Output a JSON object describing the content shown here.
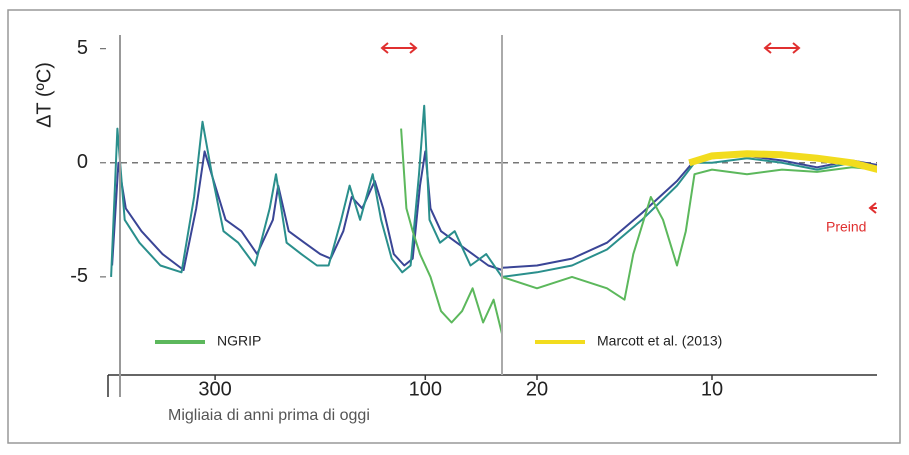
{
  "chart_data": [
    {
      "type": "line",
      "y_label": "ΔT (ºC)",
      "x_label": "Migliaia di anni prima di oggi",
      "xlim": [
        400,
        27
      ],
      "xticks": [
        300,
        100
      ],
      "ylim": [
        -9.3,
        5.6
      ],
      "yticks": [
        5,
        0,
        -5
      ],
      "hline": 0,
      "annotations": [],
      "series": [
        {
          "color": "#3a4596",
          "x": [
            398,
            392,
            385,
            370,
            350,
            330,
            318,
            310,
            300,
            290,
            275,
            260,
            245,
            240,
            230,
            215,
            200,
            190,
            178,
            170,
            160,
            148,
            140,
            130,
            120,
            112,
            105,
            100,
            95,
            85,
            70,
            55,
            40,
            27
          ],
          "values": [
            -4.5,
            0,
            -2,
            -3,
            -4,
            -4.7,
            -2,
            0.5,
            -1,
            -2.5,
            -3,
            -4,
            -2.5,
            -1,
            -3,
            -3.5,
            -4,
            -4.2,
            -3,
            -1.5,
            -2,
            -0.8,
            -2,
            -4,
            -4.5,
            -4.2,
            -1,
            0.5,
            -2,
            -3,
            -3.5,
            -4,
            -4.5,
            -4.7
          ]
        },
        {
          "color": "#2a8f8c",
          "x": [
            399,
            393,
            386,
            372,
            352,
            332,
            320,
            312,
            303,
            292,
            278,
            262,
            248,
            242,
            232,
            218,
            203,
            192,
            180,
            172,
            162,
            150,
            142,
            132,
            122,
            114,
            106,
            101,
            96,
            86,
            72,
            57,
            42,
            27
          ],
          "values": [
            -5,
            1.5,
            -2.5,
            -3.5,
            -4.5,
            -4.8,
            -1.5,
            1.8,
            -0.5,
            -3,
            -3.5,
            -4.5,
            -2,
            -0.5,
            -3.5,
            -4,
            -4.5,
            -4.5,
            -2.5,
            -1,
            -2.5,
            -0.5,
            -2.5,
            -4.2,
            -4.8,
            -4.5,
            -0.5,
            2.5,
            -2.5,
            -3.5,
            -3,
            -4.5,
            -4,
            -5
          ]
        },
        {
          "name": "NGRIP",
          "color": "#5cb85c",
          "x": [
            123,
            118,
            112,
            105,
            95,
            85,
            75,
            65,
            55,
            45,
            35,
            27
          ],
          "values": [
            1.5,
            -2,
            -3,
            -4,
            -5,
            -6.5,
            -7,
            -6.5,
            -5.5,
            -7,
            -6,
            -7.5
          ]
        }
      ]
    },
    {
      "type": "line",
      "xlim": [
        22,
        0
      ],
      "xticks": [
        20,
        10
      ],
      "ylim": [
        -9.3,
        5.6
      ],
      "hline": 0,
      "annotations": [
        "Preind"
      ],
      "series": [
        {
          "color": "#3a4596",
          "x": [
            22,
            20,
            18,
            16,
            14,
            12,
            11,
            10,
            8,
            6,
            4,
            2,
            0.5
          ],
          "values": [
            -4.6,
            -4.5,
            -4.2,
            -3.5,
            -2.2,
            -0.8,
            0.1,
            0.2,
            0.3,
            0.1,
            -0.2,
            0.1,
            -0.1
          ]
        },
        {
          "color": "#2a8f8c",
          "x": [
            22,
            20,
            18,
            16,
            14,
            12,
            11,
            10,
            8,
            6,
            4,
            2,
            0.5
          ],
          "values": [
            -5,
            -4.8,
            -4.5,
            -3.8,
            -2.5,
            -1,
            0,
            0,
            0.2,
            0,
            -0.3,
            0,
            -0.2
          ]
        },
        {
          "name": "NGRIP",
          "color": "#5cb85c",
          "x": [
            22,
            20,
            18,
            16,
            15,
            14.5,
            13.5,
            12.8,
            12,
            11.5,
            11,
            10,
            8,
            6,
            4,
            2,
            0.5
          ],
          "values": [
            -5,
            -5.5,
            -5,
            -5.5,
            -6,
            -4,
            -1.5,
            -2.5,
            -4.5,
            -3,
            -0.5,
            -0.3,
            -0.5,
            -0.3,
            -0.4,
            -0.2,
            -0.3
          ]
        },
        {
          "name": "Marcott et al. (2013)",
          "color": "#f2dc1e",
          "x": [
            11.3,
            10,
            8,
            6,
            4,
            2,
            0.5
          ],
          "values": [
            0,
            0.3,
            0.4,
            0.35,
            0.2,
            0,
            -0.3
          ]
        }
      ]
    }
  ]
}
